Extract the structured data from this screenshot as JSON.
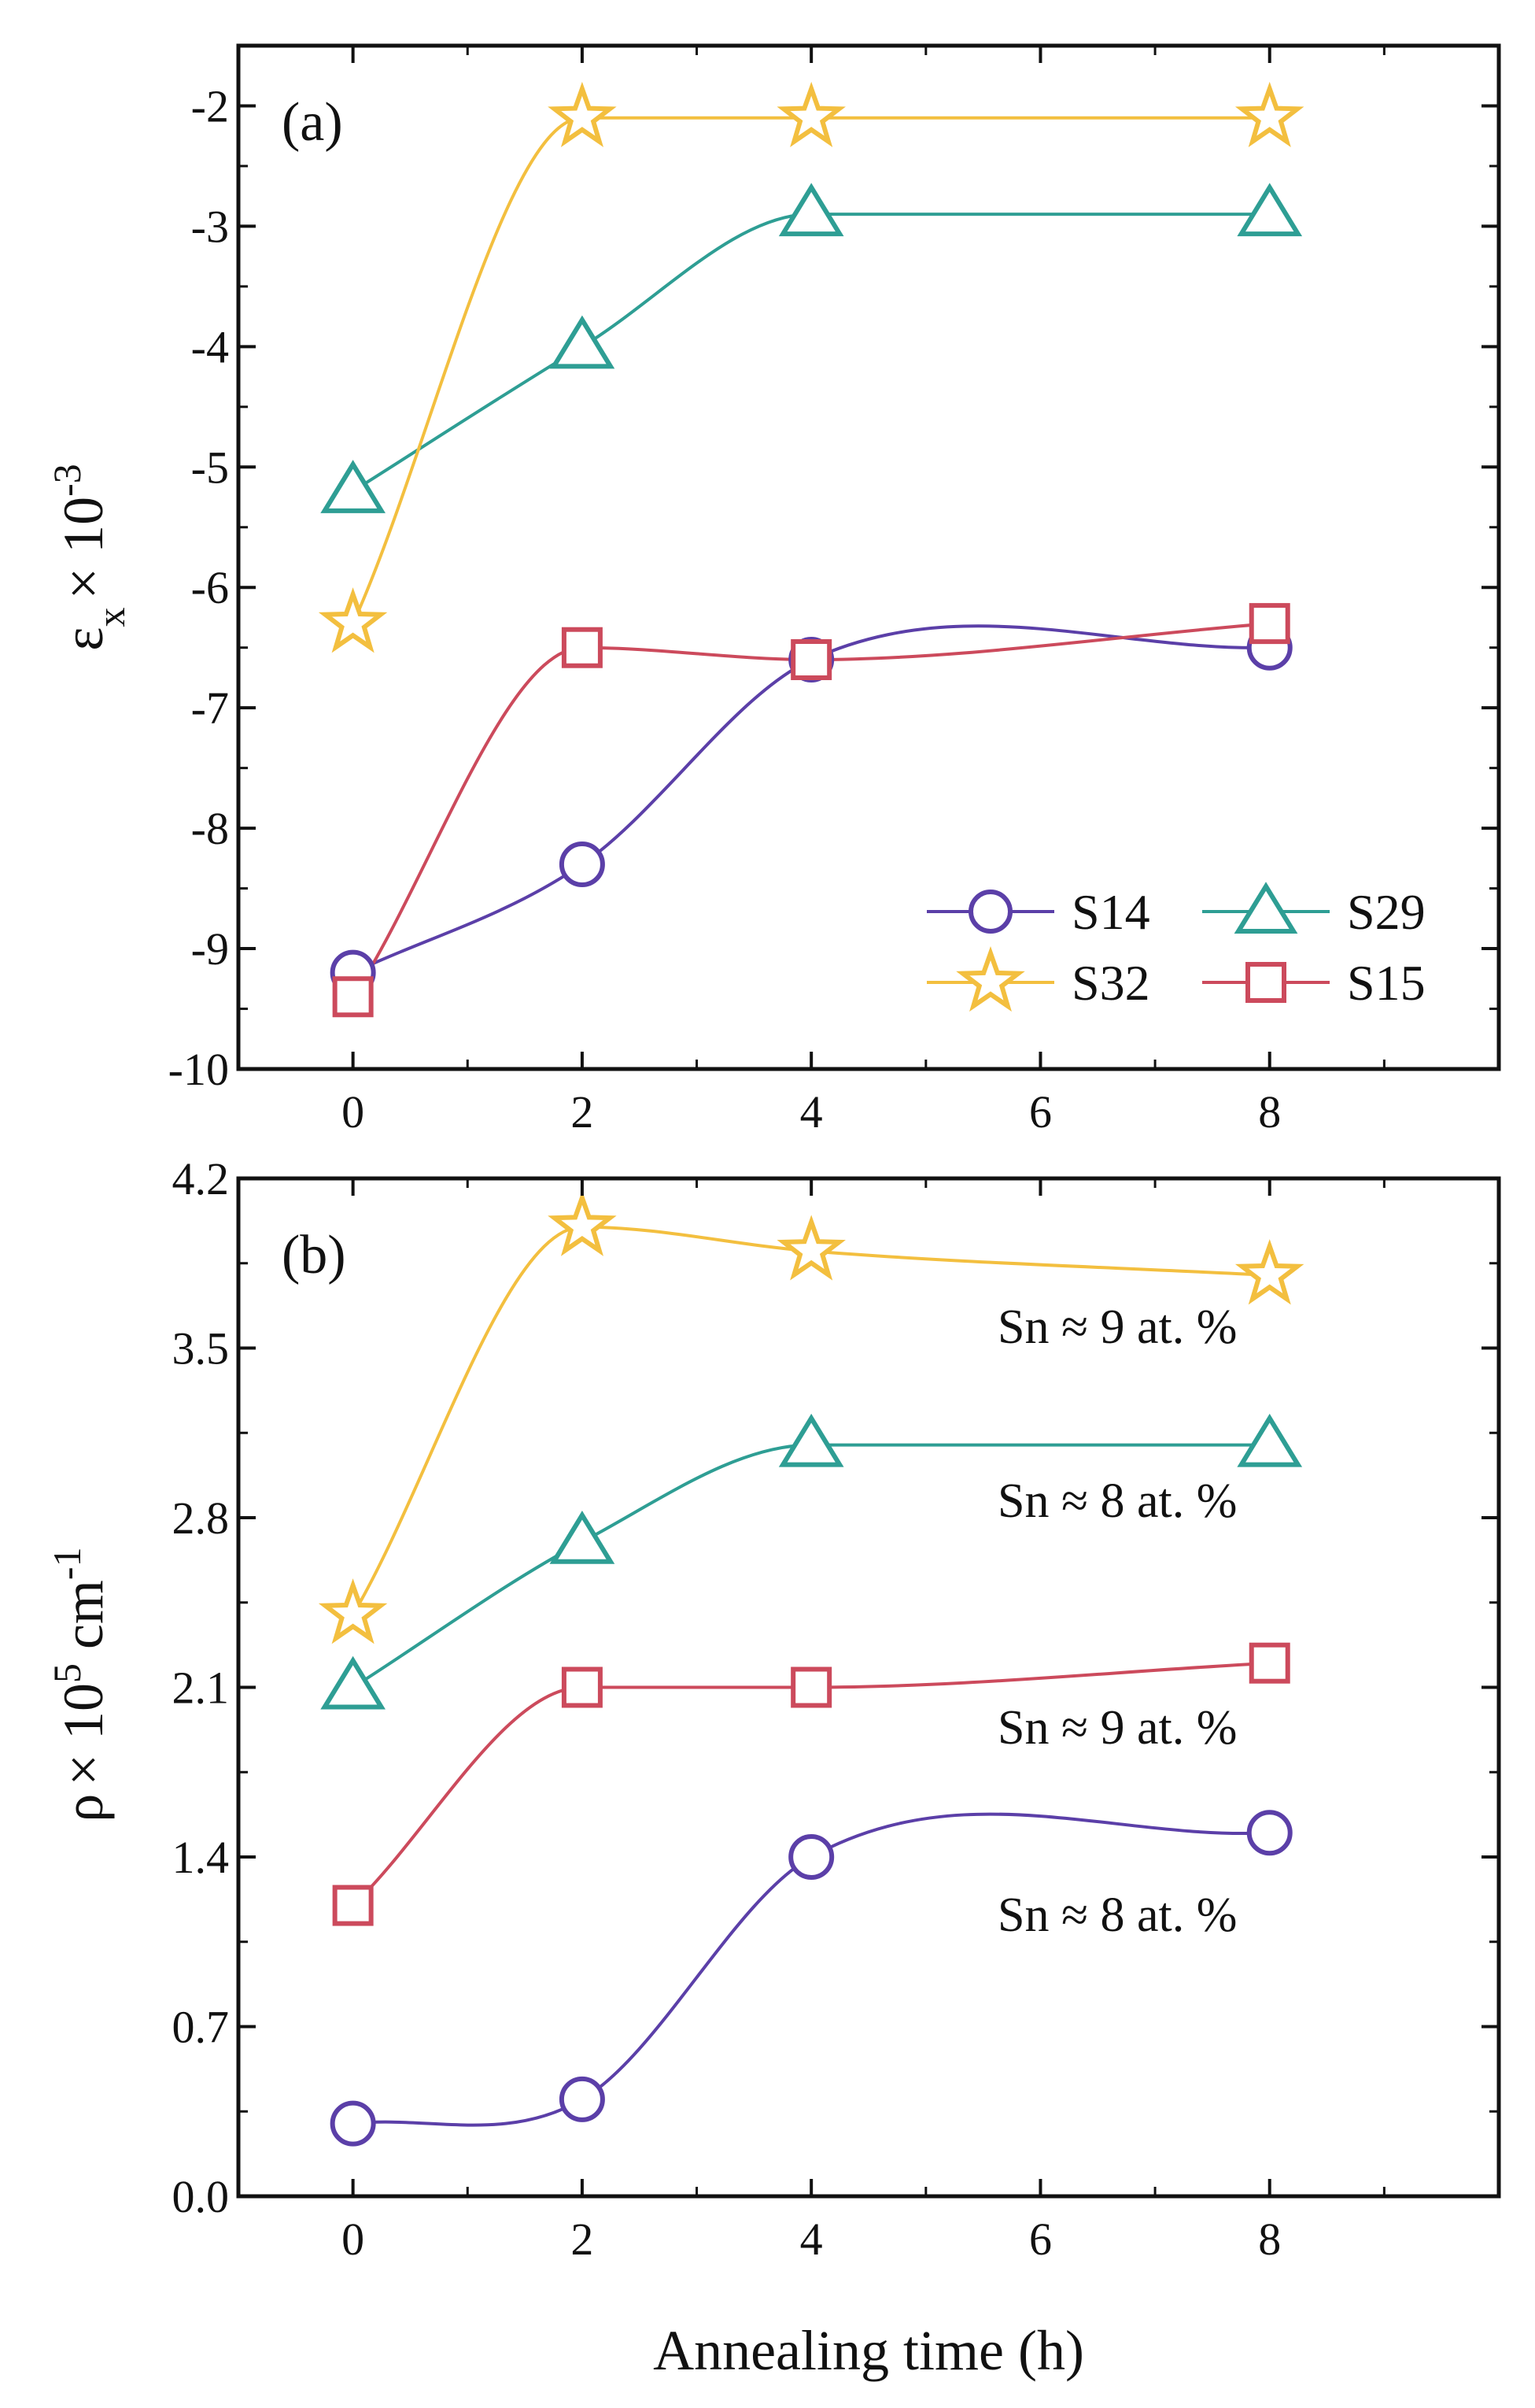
{
  "chart_data": [
    {
      "type": "line",
      "panel_label": "(a)",
      "xlabel": "",
      "ylabel": "εx × 10-3",
      "ylabel_parts": {
        "symbol": "ε",
        "subscript": "x",
        "times": "× 10",
        "superscript": "-3"
      },
      "x": [
        0,
        2,
        4,
        8
      ],
      "xlim": [
        -1,
        10
      ],
      "xticks": [
        0,
        2,
        4,
        6,
        8
      ],
      "xtick_labels": [
        "0",
        "2",
        "4",
        "6",
        "8"
      ],
      "ylim": [
        -10,
        -1.5
      ],
      "yticks": [
        -10,
        -9,
        -8,
        -7,
        -6,
        -5,
        -4,
        -3,
        -2
      ],
      "ytick_labels": [
        "-10",
        "-9",
        "-8",
        "-7",
        "-6",
        "-5",
        "-4",
        "-3",
        "-2"
      ],
      "legend_position": "bottom-right",
      "series": [
        {
          "name": "S14",
          "marker": "circle",
          "color": "#5b3fa8",
          "values": [
            -9.2,
            -8.3,
            -6.6,
            -6.5
          ]
        },
        {
          "name": "S29",
          "marker": "triangle",
          "color": "#2e9e94",
          "values": [
            -5.2,
            -4.0,
            -2.9,
            -2.9
          ]
        },
        {
          "name": "S32",
          "marker": "star",
          "color": "#f3bf3f",
          "values": [
            -6.3,
            -2.1,
            -2.1,
            -2.1
          ]
        },
        {
          "name": "S15",
          "marker": "square",
          "color": "#cc4a5c",
          "values": [
            -9.4,
            -6.5,
            -6.6,
            -6.3
          ]
        }
      ]
    },
    {
      "type": "line",
      "panel_label": "(b)",
      "xlabel": "Annealing time (h)",
      "ylabel": "ρ × 105 cm-1",
      "ylabel_parts": {
        "symbol": "ρ",
        "times": "× 10",
        "superscript1": "5",
        "unit": " cm",
        "superscript2": "-1"
      },
      "x": [
        0,
        2,
        4,
        8
      ],
      "xlim": [
        -1,
        10
      ],
      "xticks": [
        0,
        2,
        4,
        6,
        8
      ],
      "xtick_labels": [
        "0",
        "2",
        "4",
        "6",
        "8"
      ],
      "ylim": [
        0,
        4.2
      ],
      "yticks": [
        0,
        0.7,
        1.4,
        2.1,
        2.8,
        3.5,
        4.2
      ],
      "ytick_labels": [
        "0.0",
        "0.7",
        "1.4",
        "2.1",
        "2.8",
        "3.5",
        "4.2"
      ],
      "series": [
        {
          "marker": "star",
          "color": "#f3bf3f",
          "values": [
            2.4,
            4.0,
            3.9,
            3.8
          ]
        },
        {
          "marker": "triangle",
          "color": "#2e9e94",
          "values": [
            2.1,
            2.7,
            3.1,
            3.1
          ]
        },
        {
          "marker": "square",
          "color": "#cc4a5c",
          "values": [
            1.2,
            2.1,
            2.1,
            2.2
          ]
        },
        {
          "marker": "circle",
          "color": "#5b3fa8",
          "values": [
            0.3,
            0.4,
            1.4,
            1.5
          ]
        }
      ],
      "annotations": [
        "Sn ≈ 9 at. %",
        "Sn ≈ 8 at. %",
        "Sn ≈ 9 at. %",
        "Sn ≈ 8 at. %"
      ]
    }
  ]
}
